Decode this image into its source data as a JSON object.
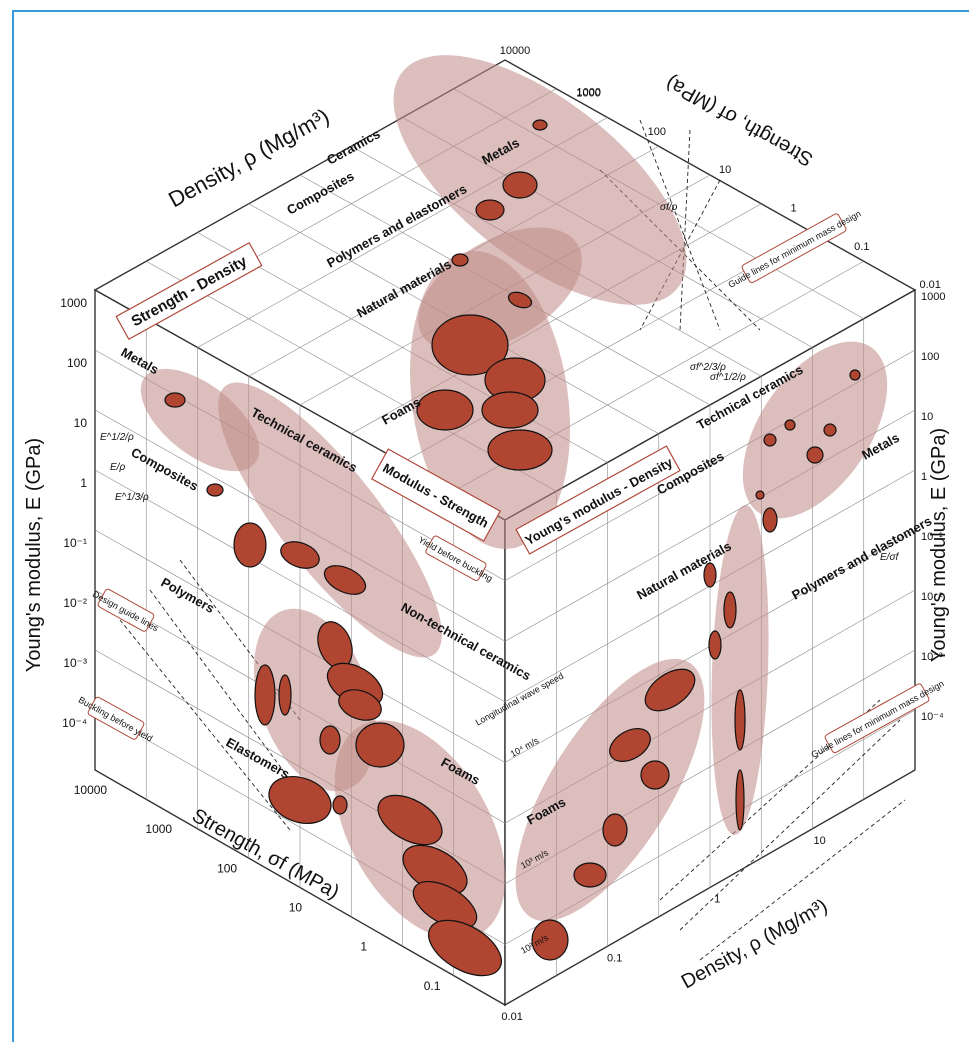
{
  "chart_data": {
    "type": "scatter",
    "faces": [
      {
        "title": "Strength - Density",
        "xlabel": "Density, ρ (Mg/m³)",
        "ylabel": "Strength, σf (MPa)",
        "x_ticks": [
          "10000",
          "1000"
        ],
        "y_ticks": [
          "1000",
          "100",
          "10",
          "1",
          "0.1",
          "0.01"
        ],
        "class_labels": [
          "Metals",
          "Ceramics",
          "Composites",
          "Polymers and elastomers",
          "Natural materials",
          "Foams"
        ],
        "note": "Guide lines for minimum mass design"
      },
      {
        "title": "Modulus - Strength",
        "xlabel": "Strength, σf (MPa)",
        "ylabel": "Young's modulus, E (GPa)",
        "x_ticks": [
          "10000",
          "1000",
          "100",
          "10",
          "1",
          "0.1"
        ],
        "y_ticks": [
          "1000",
          "100",
          "10",
          "1",
          "10⁻¹",
          "10⁻²",
          "10⁻³",
          "10⁻⁴"
        ],
        "class_labels": [
          "Metals",
          "Technical ceramics",
          "Composites",
          "Polymers",
          "Non-technical ceramics",
          "Elastomers",
          "Foams"
        ],
        "notes": [
          "Yield before buckling",
          "Design guide lines",
          "Buckling before yield"
        ]
      },
      {
        "title": "Young's modulus - Density",
        "xlabel": "Density, ρ (Mg/m³)",
        "ylabel": "Young's modulus, E (GPa)",
        "x_ticks": [
          "0.01",
          "0.1",
          "1",
          "10"
        ],
        "y_ticks": [
          "1000",
          "100",
          "10",
          "1",
          "10⁻¹",
          "10⁻²",
          "10⁻³",
          "10⁻⁴"
        ],
        "class_labels": [
          "Technical ceramics",
          "Metals",
          "Composites",
          "Natural materials",
          "Polymers and elastomers",
          "Foams"
        ],
        "notes": [
          "Guide lines for minimum mass design",
          "Longitudinal wave speed",
          "10⁴ m/s",
          "10³ m/s",
          "10² m/s"
        ]
      }
    ],
    "guide_labels": [
      "E/ρ",
      "E^1/2/ρ",
      "E^1/3/ρ",
      "σf/ρ",
      "σf^2/3/ρ",
      "σf^1/2/ρ",
      "E/σf"
    ]
  }
}
